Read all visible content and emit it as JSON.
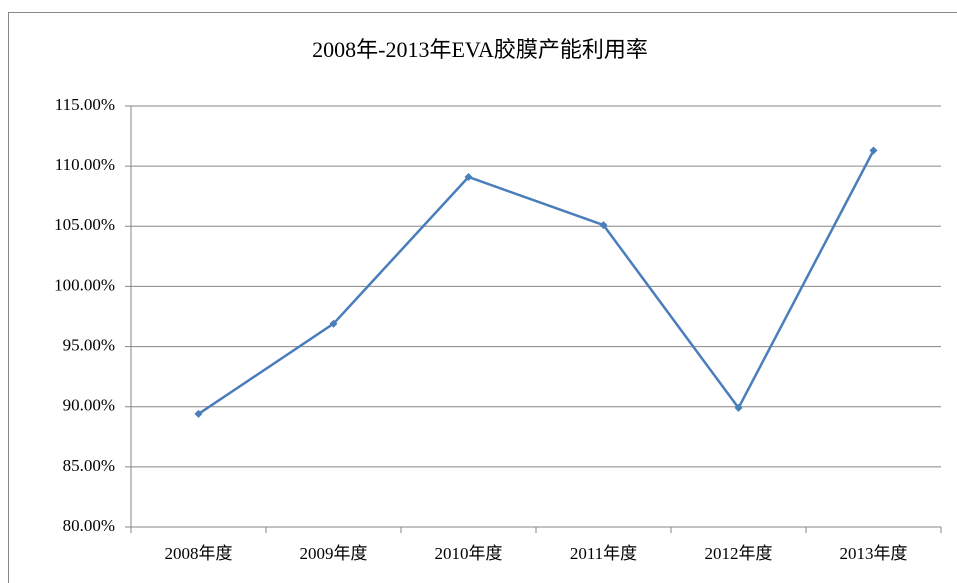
{
  "chart_data": {
    "type": "line",
    "title": "2008年-2013年EVA胶膜产能利用率",
    "categories": [
      "2008年度",
      "2009年度",
      "2010年度",
      "2011年度",
      "2012年度",
      "2013年度"
    ],
    "series": [
      {
        "name": "产能利用率",
        "color": "#4a7ebb",
        "values": [
          89.4,
          96.9,
          109.1,
          105.1,
          89.9,
          111.3
        ]
      }
    ],
    "ylim": [
      80,
      115
    ],
    "yticks": [
      {
        "value": 80,
        "label": "80.00%"
      },
      {
        "value": 85,
        "label": "85.00%"
      },
      {
        "value": 90,
        "label": "90.00%"
      },
      {
        "value": 95,
        "label": "95.00%"
      },
      {
        "value": 100,
        "label": "100.00%"
      },
      {
        "value": 105,
        "label": "105.00%"
      },
      {
        "value": 110,
        "label": "110.00%"
      },
      {
        "value": 115,
        "label": "115.00%"
      }
    ],
    "grid": true
  }
}
